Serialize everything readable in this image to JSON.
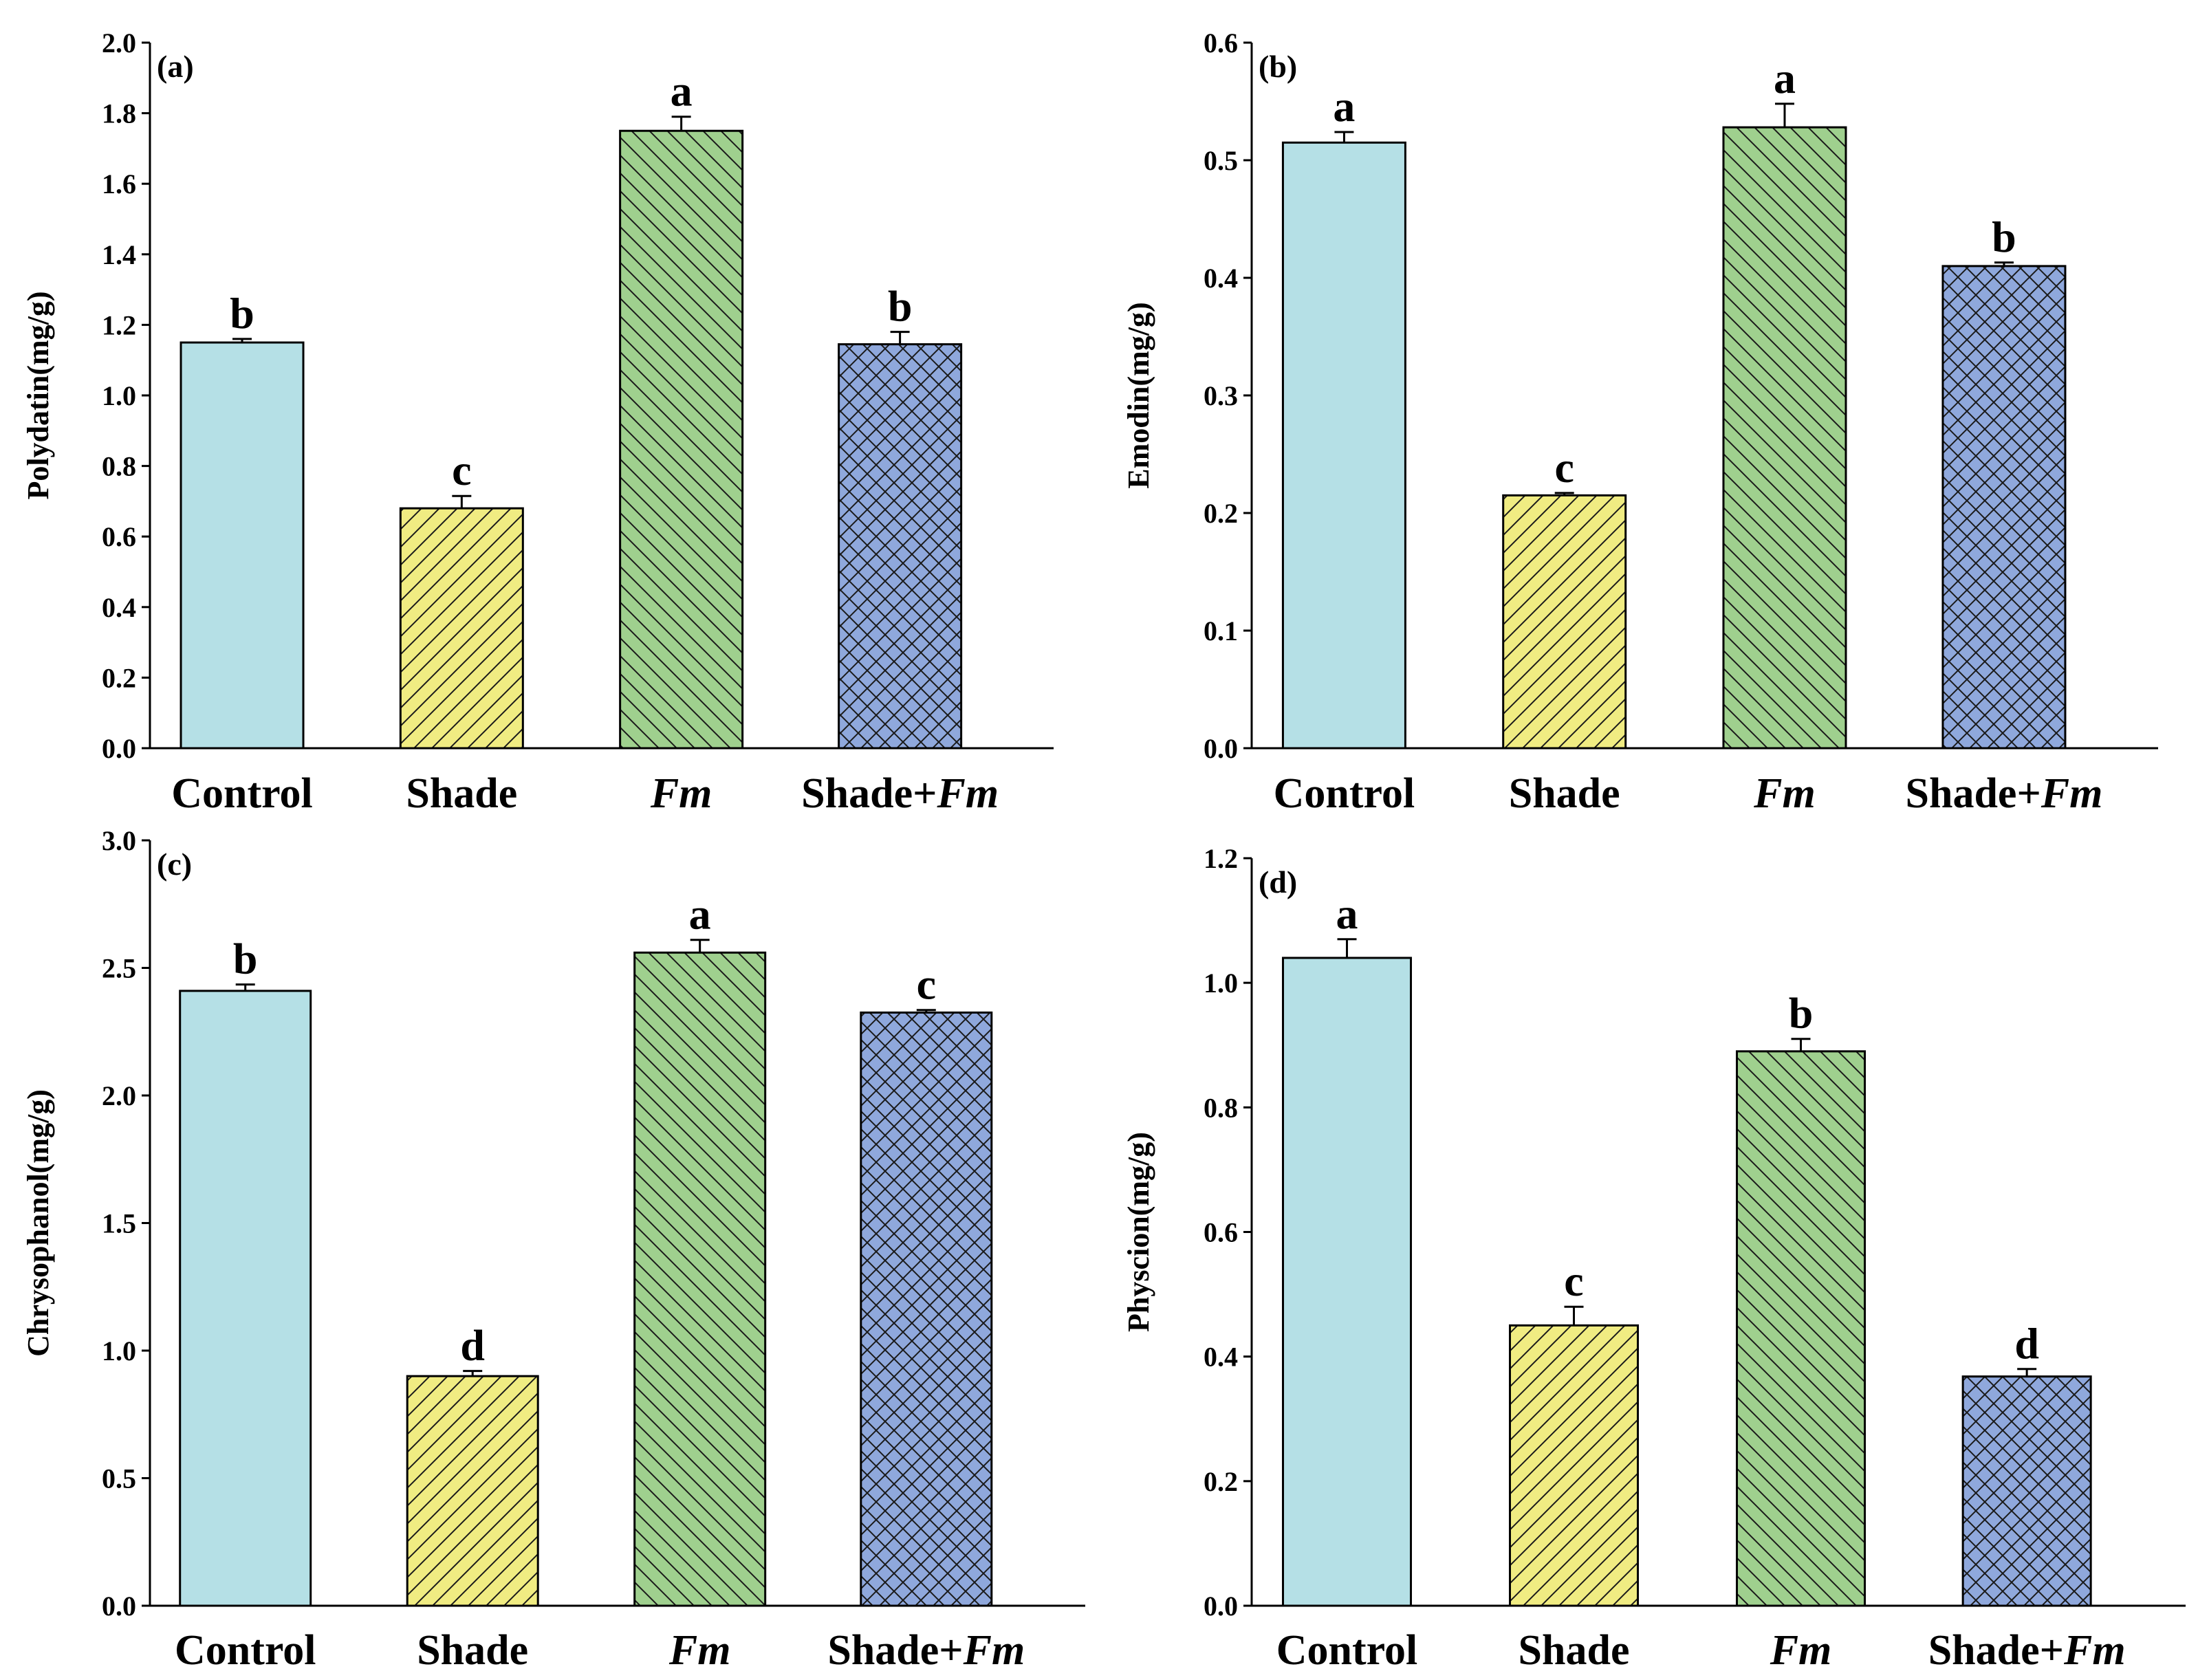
{
  "chart_data": [
    {
      "type": "bar",
      "panel": "(a)",
      "categories": [
        "Control",
        "Shade",
        "Fm",
        "Shade+Fm"
      ],
      "values": [
        1.15,
        0.68,
        1.75,
        1.145
      ],
      "errors": [
        0.01,
        0.035,
        0.04,
        0.035
      ],
      "significance": [
        "b",
        "c",
        "a",
        "b"
      ],
      "ylabel": "Polydatin(mg/g)",
      "xlabel": "",
      "ylim": [
        0,
        2.0
      ],
      "yticks": [
        "0.0",
        "0.2",
        "0.4",
        "0.6",
        "0.8",
        "1.0",
        "1.2",
        "1.4",
        "1.6",
        "1.8",
        "2.0"
      ]
    },
    {
      "type": "bar",
      "panel": "(b)",
      "categories": [
        "Control",
        "Shade",
        "Fm",
        "Shade+Fm"
      ],
      "values": [
        0.515,
        0.215,
        0.528,
        0.41
      ],
      "errors": [
        0.009,
        0.002,
        0.02,
        0.003
      ],
      "significance": [
        "a",
        "c",
        "a",
        "b"
      ],
      "ylabel": "Emodin(mg/g)",
      "xlabel": "",
      "ylim": [
        0,
        0.6
      ],
      "yticks": [
        "0.0",
        "0.1",
        "0.2",
        "0.3",
        "0.4",
        "0.5",
        "0.6"
      ]
    },
    {
      "type": "bar",
      "panel": "(c)",
      "categories": [
        "Control",
        "Shade",
        "Fm",
        "Shade+Fm"
      ],
      "values": [
        2.41,
        0.9,
        2.56,
        2.325
      ],
      "errors": [
        0.025,
        0.02,
        0.05,
        0.01
      ],
      "significance": [
        "b",
        "d",
        "a",
        "c"
      ],
      "ylabel": "Chrysophanol(mg/g)",
      "xlabel": "",
      "ylim": [
        0,
        3.0
      ],
      "yticks": [
        "0.0",
        "0.5",
        "1.0",
        "1.5",
        "2.0",
        "2.5",
        "3.0"
      ]
    },
    {
      "type": "bar",
      "panel": "(d)",
      "categories": [
        "Control",
        "Shade",
        "Fm",
        "Shade+Fm"
      ],
      "values": [
        1.04,
        0.45,
        0.89,
        0.368
      ],
      "errors": [
        0.03,
        0.03,
        0.02,
        0.012
      ],
      "significance": [
        "a",
        "c",
        "b",
        "d"
      ],
      "ylabel": "Physcion(mg/g)",
      "xlabel": "",
      "ylim": [
        0,
        1.2
      ],
      "yticks": [
        "0.0",
        "0.2",
        "0.4",
        "0.6",
        "0.8",
        "1.0",
        "1.2"
      ]
    }
  ],
  "series_styles": [
    {
      "name": "Control",
      "fill": "#b5e0e6",
      "pattern": "none"
    },
    {
      "name": "Shade",
      "fill": "#f0ec82",
      "pattern": "diagonal"
    },
    {
      "name": "Fm",
      "fill": "#9fd08e",
      "pattern": "diagonal-back"
    },
    {
      "name": "Shade+Fm",
      "fill": "#8fa8dc",
      "pattern": "crosshatch"
    }
  ]
}
